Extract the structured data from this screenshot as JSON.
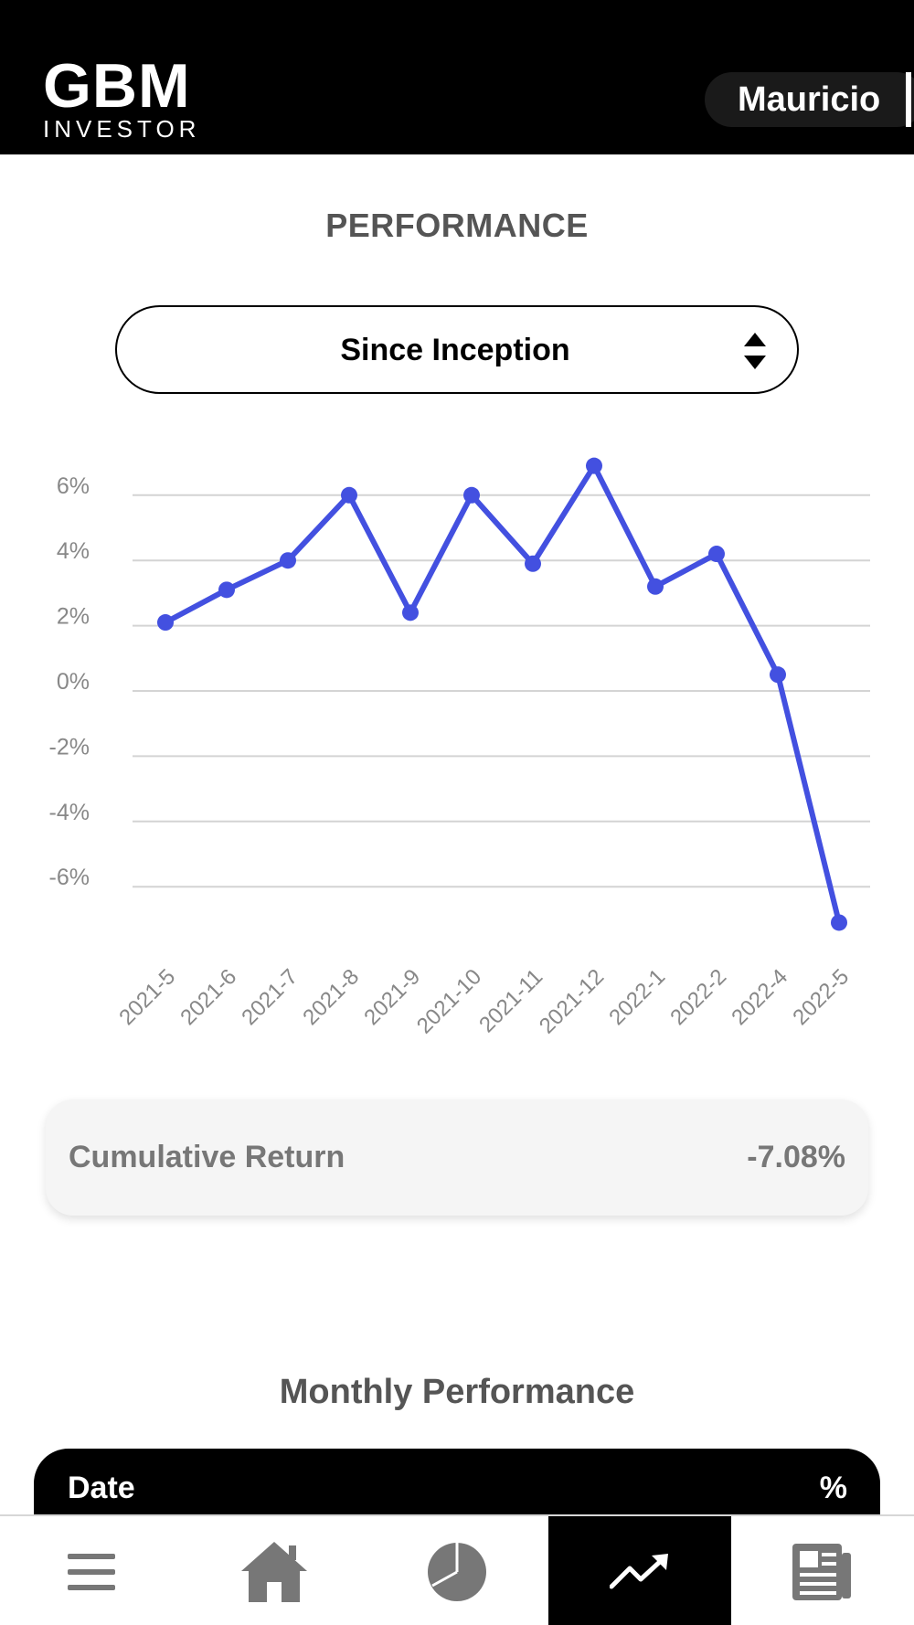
{
  "header": {
    "logo_main": "GBM",
    "logo_sub": "INVESTOR",
    "user_name": "Mauricio"
  },
  "performance": {
    "title": "PERFORMANCE",
    "range_selected": "Since Inception"
  },
  "chart_data": {
    "type": "line",
    "title": "",
    "xlabel": "",
    "ylabel": "",
    "categories": [
      "2021-5",
      "2021-6",
      "2021-7",
      "2021-8",
      "2021-9",
      "2021-10",
      "2021-11",
      "2021-12",
      "2022-1",
      "2022-2",
      "2022-4",
      "2022-5"
    ],
    "series": [
      {
        "values": [
          2.1,
          3.1,
          4.0,
          6.0,
          2.4,
          6.0,
          3.9,
          6.9,
          3.2,
          4.2,
          0.5,
          -7.1
        ]
      }
    ],
    "y_ticks": [
      6,
      4,
      2,
      0,
      -2,
      -4,
      -6
    ],
    "y_tick_labels": [
      "6%",
      "4%",
      "2%",
      "0%",
      "-2%",
      "-4%",
      "-6%"
    ],
    "ylim": [
      -7.1,
      7.0
    ],
    "grid": true,
    "legend": "none",
    "line_color": "#4350e0",
    "grid_color": "#d4d4d4"
  },
  "cumulative": {
    "label": "Cumulative Return",
    "value": "-7.08%"
  },
  "monthly": {
    "title": "Monthly Performance",
    "col_date": "Date",
    "col_pct": "%"
  },
  "nav": [
    {
      "name": "menu-icon"
    },
    {
      "name": "home-icon"
    },
    {
      "name": "pie-chart-icon"
    },
    {
      "name": "trending-up-icon",
      "active": true
    },
    {
      "name": "news-icon"
    }
  ]
}
